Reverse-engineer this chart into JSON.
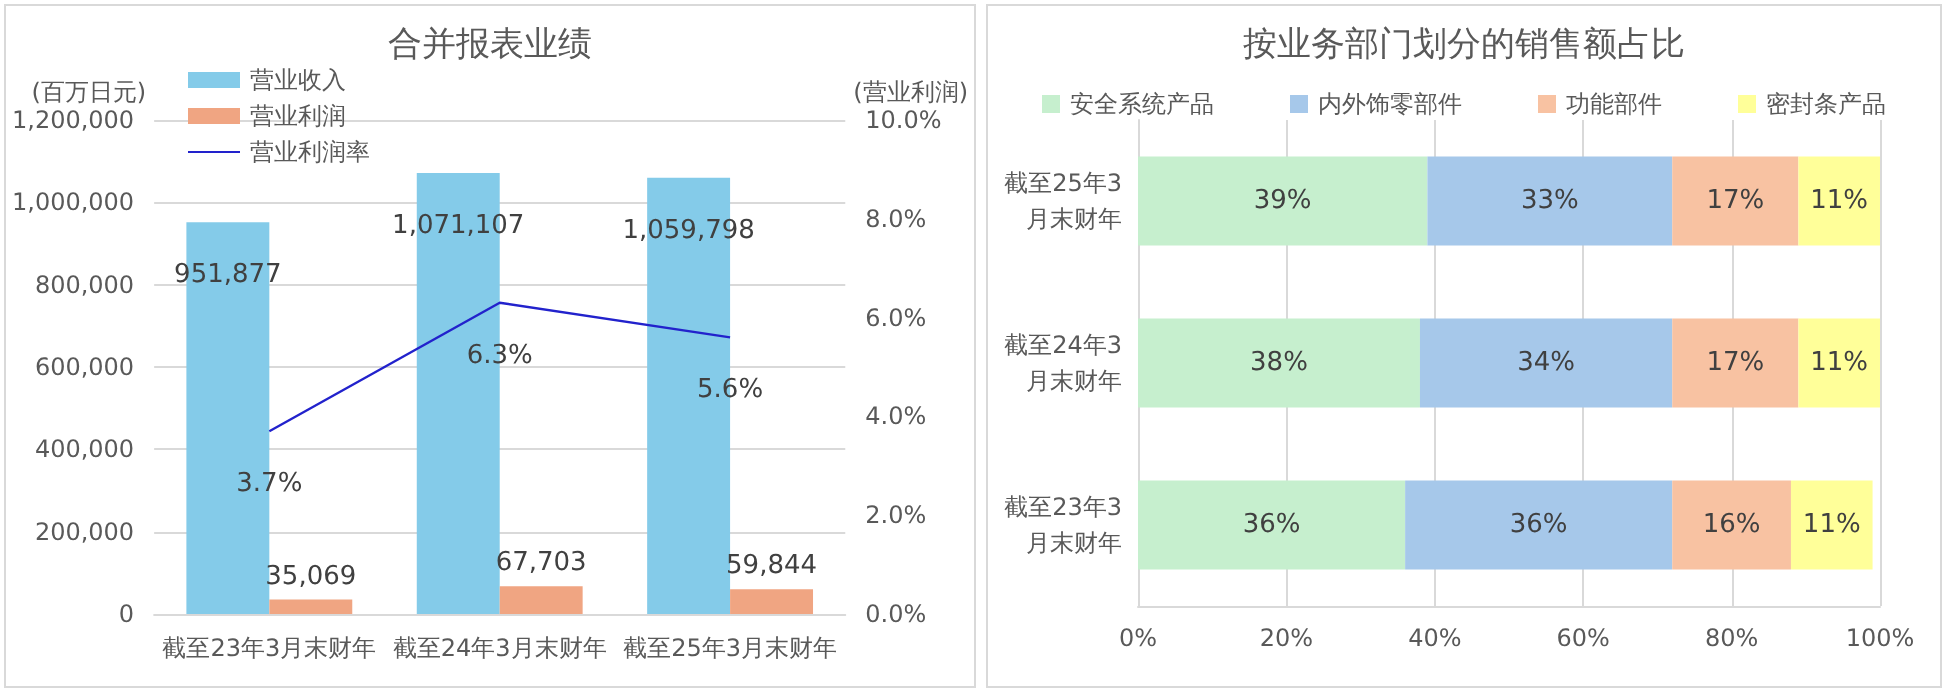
{
  "chart_data": [
    {
      "type": "bar",
      "title": "合并报表业绩",
      "ylabel": "(百万日元)",
      "y2label": "(营业利润)",
      "categories": [
        "截至23年3月末财年",
        "截至24年3月末财年",
        "截至25年3月末财年"
      ],
      "series": [
        {
          "name": "营业收入",
          "color": "#84cbe9",
          "values": [
            951877,
            1071107,
            1059798
          ],
          "value_labels": [
            "951,877",
            "1,071,107",
            "1,059,798"
          ]
        },
        {
          "name": "营业利润",
          "color": "#f0a582",
          "values": [
            35069,
            67703,
            59844
          ],
          "value_labels": [
            "35,069",
            "67,703",
            "59,844"
          ]
        },
        {
          "name": "营业利润率",
          "type": "line",
          "axis": "y2",
          "color": "#2222cc",
          "values": [
            3.7,
            6.3,
            5.6
          ],
          "value_labels": [
            "3.7%",
            "6.3%",
            "5.6%"
          ]
        }
      ],
      "ylim": [
        0,
        1200000
      ],
      "yticks": [
        {
          "value": 0,
          "label": "0"
        },
        {
          "value": 200000,
          "label": "200,000"
        },
        {
          "value": 400000,
          "label": "400,000"
        },
        {
          "value": 600000,
          "label": "600,000"
        },
        {
          "value": 800000,
          "label": "800,000"
        },
        {
          "value": 1000000,
          "label": "1,000,000"
        },
        {
          "value": 1200000,
          "label": "1,200,000"
        }
      ],
      "y2lim": [
        0,
        10
      ],
      "y2ticks": [
        {
          "value": 0,
          "label": "0.0%"
        },
        {
          "value": 2,
          "label": "2.0%"
        },
        {
          "value": 4,
          "label": "4.0%"
        },
        {
          "value": 6,
          "label": "6.0%"
        },
        {
          "value": 8,
          "label": "8.0%"
        },
        {
          "value": 10,
          "label": "10.0%"
        }
      ],
      "grid": "y",
      "legend": "top left",
      "marker": "none"
    },
    {
      "type": "bar",
      "title": "按业务部门划分的销售额占比",
      "orientation": "horizontal",
      "stacked": true,
      "categories": [
        "截至25年3月末财年",
        "截至24年3月末财年",
        "截至23年3月末财年"
      ],
      "series": [
        {
          "name": "安全系统产品",
          "color": "#c6efce",
          "values": [
            39,
            38,
            36
          ],
          "value_labels": [
            "39%",
            "38%",
            "36%"
          ]
        },
        {
          "name": "内外饰零部件",
          "color": "#a6c8ea",
          "values": [
            33,
            34,
            36
          ],
          "value_labels": [
            "33%",
            "34%",
            "36%"
          ]
        },
        {
          "name": "功能部件",
          "color": "#f8c2a2",
          "values": [
            17,
            17,
            16
          ],
          "value_labels": [
            "17%",
            "17%",
            "16%"
          ]
        },
        {
          "name": "密封条产品",
          "color": "#ffff99",
          "values": [
            11,
            11,
            11
          ],
          "value_labels": [
            "11%",
            "11%",
            "11%"
          ]
        }
      ],
      "xlim": [
        0,
        100
      ],
      "xticks": [
        {
          "value": 0,
          "label": "0%"
        },
        {
          "value": 20,
          "label": "20%"
        },
        {
          "value": 40,
          "label": "40%"
        },
        {
          "value": 60,
          "label": "60%"
        },
        {
          "value": 80,
          "label": "80%"
        },
        {
          "value": 100,
          "label": "100%"
        }
      ],
      "grid": "x",
      "legend": "top"
    }
  ]
}
